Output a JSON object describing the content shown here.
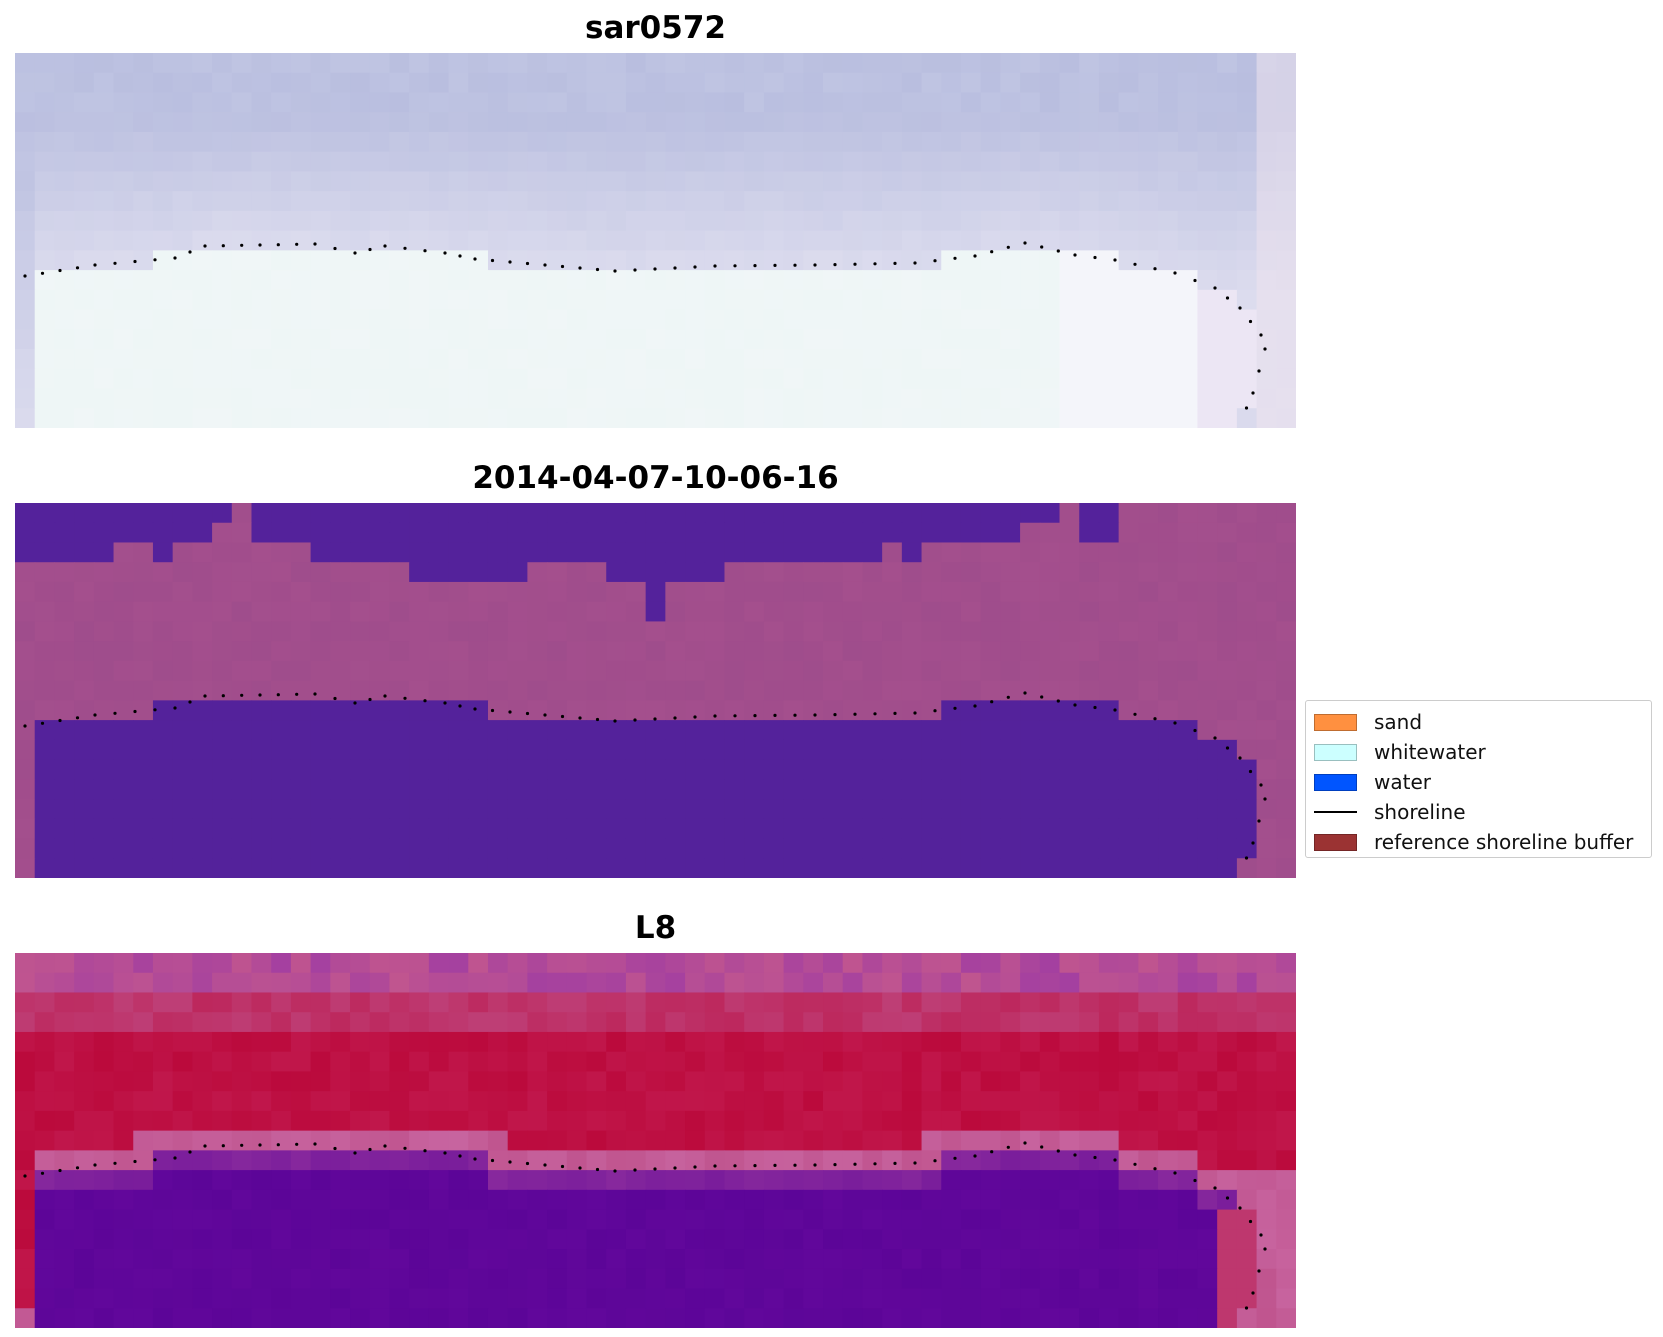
{
  "panels": [
    {
      "title": "sar0572",
      "style": "rgb"
    },
    {
      "title": "2014-04-07-10-06-16",
      "style": "classified"
    },
    {
      "title": "L8",
      "style": "index"
    }
  ],
  "legend": {
    "items": [
      {
        "label": "sand",
        "color": "#ff9040",
        "kind": "patch"
      },
      {
        "label": "whitewater",
        "color": "#ccffff",
        "kind": "patch"
      },
      {
        "label": "water",
        "color": "#0055ff",
        "kind": "patch"
      },
      {
        "label": "shoreline",
        "color": "#000000",
        "kind": "line"
      },
      {
        "label": "reference shoreline buffer",
        "color": "#9b3333",
        "kind": "patch"
      }
    ]
  },
  "colors": {
    "classified_water": "#54229b",
    "classified_land": "#a44f8d",
    "rgb_sky": "#b9bedf",
    "rgb_foam": "#eef6f6",
    "index_high": "#bb0a3c",
    "index_low": "#5c0598",
    "shoreline_dots": "#000000"
  }
}
